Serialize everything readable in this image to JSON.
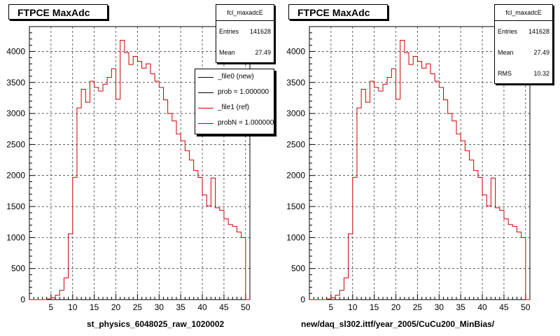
{
  "chart_data": [
    {
      "type": "line",
      "title": "FTPCE MaxAdc",
      "xlabel": "st_physics_6048025_raw_1020002",
      "ylabel": "",
      "xlim": [
        0,
        51
      ],
      "ylim": [
        0,
        4400
      ],
      "x_ticks": [
        5,
        10,
        15,
        20,
        25,
        30,
        35,
        40,
        45,
        50
      ],
      "y_ticks": [
        0,
        500,
        1000,
        1500,
        2000,
        2500,
        3000,
        3500,
        4000
      ],
      "grid": true,
      "stats": {
        "name": "fcl_maxadcE",
        "entries_label": "Entries",
        "entries": "141628",
        "mean_label": "Mean",
        "mean": "27.49"
      },
      "legend": {
        "placement": "top-right",
        "entries": [
          {
            "label": "_file0 (new)",
            "color": "#000000"
          },
          {
            "label": "prob = 1.000000",
            "color": "#000000"
          },
          {
            "label": "_file1 (ref)",
            "color": "#cc0000"
          },
          {
            "label": "probN = 1.000000",
            "color": "#cc0000"
          }
        ]
      },
      "series": [
        {
          "color": "#cc0000",
          "x": [
            0,
            1,
            2,
            3,
            4,
            5,
            6,
            7,
            8,
            9,
            10,
            11,
            12,
            13,
            14,
            15,
            16,
            17,
            18,
            19,
            20,
            21,
            22,
            23,
            24,
            25,
            26,
            27,
            28,
            29,
            30,
            31,
            32,
            33,
            34,
            35,
            36,
            37,
            38,
            39,
            40,
            41,
            42,
            43,
            44,
            45,
            46,
            47,
            48,
            49,
            50
          ],
          "values": [
            0,
            0,
            0,
            0,
            10,
            30,
            70,
            150,
            350,
            1060,
            1970,
            3090,
            3390,
            3180,
            3520,
            3420,
            3360,
            3470,
            3580,
            3720,
            3230,
            4180,
            3980,
            3790,
            3920,
            3840,
            3730,
            3800,
            3640,
            3520,
            3420,
            3220,
            3000,
            2880,
            2670,
            2560,
            2400,
            2250,
            2080,
            1970,
            1690,
            1510,
            1960,
            1480,
            1440,
            1300,
            1210,
            1180,
            1090,
            1000,
            0
          ]
        }
      ]
    },
    {
      "type": "line",
      "title": "FTPCE MaxAdc",
      "xlabel": "new/daq_sl302.ittf/year_2005/CuCu200_MinBias/",
      "ylabel": "",
      "xlim": [
        0,
        51
      ],
      "ylim": [
        0,
        4400
      ],
      "x_ticks": [
        5,
        10,
        15,
        20,
        25,
        30,
        35,
        40,
        45,
        50
      ],
      "y_ticks": [
        0,
        500,
        1000,
        1500,
        2000,
        2500,
        3000,
        3500,
        4000
      ],
      "grid": true,
      "stats": {
        "name": "fcl_maxadcE",
        "entries_label": "Entries",
        "entries": "141628",
        "mean_label": "Mean",
        "mean": "27.49",
        "rms_label": "RMS",
        "rms": "10.32"
      },
      "series": [
        {
          "color": "#cc0000",
          "x": [
            0,
            1,
            2,
            3,
            4,
            5,
            6,
            7,
            8,
            9,
            10,
            11,
            12,
            13,
            14,
            15,
            16,
            17,
            18,
            19,
            20,
            21,
            22,
            23,
            24,
            25,
            26,
            27,
            28,
            29,
            30,
            31,
            32,
            33,
            34,
            35,
            36,
            37,
            38,
            39,
            40,
            41,
            42,
            43,
            44,
            45,
            46,
            47,
            48,
            49,
            50
          ],
          "values": [
            0,
            0,
            0,
            0,
            10,
            30,
            70,
            150,
            350,
            1060,
            1970,
            3090,
            3390,
            3180,
            3520,
            3420,
            3360,
            3470,
            3580,
            3720,
            3230,
            4180,
            3980,
            3790,
            3920,
            3840,
            3730,
            3800,
            3640,
            3520,
            3420,
            3220,
            3000,
            2880,
            2670,
            2560,
            2400,
            2250,
            2080,
            1970,
            1690,
            1510,
            1960,
            1480,
            1440,
            1300,
            1210,
            1180,
            1090,
            1000,
            0
          ]
        }
      ]
    }
  ]
}
